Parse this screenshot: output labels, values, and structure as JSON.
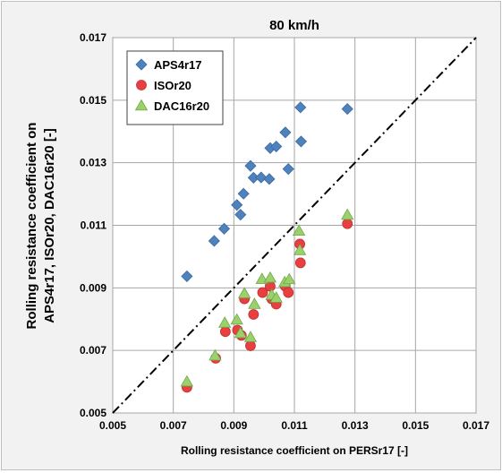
{
  "chart_data": {
    "type": "scatter",
    "title": "80 km/h",
    "xlabel": "Rolling resistance coefficient on PERSr17 [-]",
    "ylabel_lines": [
      "Rolling resistance coefficient on",
      "APS4r17, ISOr20, DAC16r20  [-]"
    ],
    "xlim": [
      0.005,
      0.017
    ],
    "ylim": [
      0.005,
      0.017
    ],
    "x_ticks": [
      "0.005",
      "0.007",
      "0.009",
      "0.011",
      "0.013",
      "0.015",
      "0.017"
    ],
    "y_ticks": [
      "0.005",
      "0.007",
      "0.009",
      "0.011",
      "0.013",
      "0.015",
      "0.017"
    ],
    "grid": true,
    "legend_position": "top-left",
    "reference_line": {
      "style": "dash-dot",
      "x": [
        0.005,
        0.017
      ],
      "y": [
        0.005,
        0.017
      ]
    },
    "series": [
      {
        "name": "APS4r17",
        "marker": "diamond",
        "color": "#4f81bd",
        "points": [
          [
            0.00745,
            0.00937
          ],
          [
            0.00835,
            0.0105
          ],
          [
            0.00868,
            0.01089
          ],
          [
            0.0091,
            0.01165
          ],
          [
            0.00922,
            0.01134
          ],
          [
            0.00932,
            0.01201
          ],
          [
            0.00955,
            0.0129
          ],
          [
            0.00965,
            0.01252
          ],
          [
            0.0099,
            0.01253
          ],
          [
            0.01017,
            0.01248
          ],
          [
            0.0102,
            0.01347
          ],
          [
            0.0104,
            0.01352
          ],
          [
            0.0107,
            0.01397
          ],
          [
            0.0108,
            0.0128
          ],
          [
            0.0112,
            0.01477
          ],
          [
            0.01122,
            0.01368
          ],
          [
            0.01275,
            0.01472
          ]
        ]
      },
      {
        "name": "ISOr20",
        "marker": "circle",
        "color": "#e84040",
        "points": [
          [
            0.00745,
            0.00582
          ],
          [
            0.0084,
            0.00675
          ],
          [
            0.00872,
            0.0076
          ],
          [
            0.00912,
            0.00765
          ],
          [
            0.00925,
            0.00748
          ],
          [
            0.00935,
            0.00865
          ],
          [
            0.00955,
            0.00715
          ],
          [
            0.00965,
            0.00815
          ],
          [
            0.00995,
            0.00885
          ],
          [
            0.0102,
            0.00905
          ],
          [
            0.01025,
            0.00865
          ],
          [
            0.0104,
            0.00848
          ],
          [
            0.0107,
            0.00905
          ],
          [
            0.0108,
            0.00885
          ],
          [
            0.01118,
            0.0104
          ],
          [
            0.0112,
            0.0098
          ],
          [
            0.01275,
            0.01105
          ]
        ]
      },
      {
        "name": "DAC16r20",
        "marker": "triangle",
        "color": "#9bd16a",
        "points": [
          [
            0.00745,
            0.006
          ],
          [
            0.00838,
            0.00683
          ],
          [
            0.0087,
            0.00788
          ],
          [
            0.0091,
            0.00798
          ],
          [
            0.00922,
            0.00755
          ],
          [
            0.00935,
            0.00882
          ],
          [
            0.00955,
            0.00742
          ],
          [
            0.00968,
            0.00848
          ],
          [
            0.00993,
            0.00928
          ],
          [
            0.0102,
            0.00932
          ],
          [
            0.01025,
            0.00877
          ],
          [
            0.0104,
            0.00868
          ],
          [
            0.01068,
            0.00918
          ],
          [
            0.01083,
            0.00927
          ],
          [
            0.01115,
            0.01082
          ],
          [
            0.01118,
            0.0102
          ],
          [
            0.01275,
            0.01133
          ]
        ]
      }
    ]
  }
}
